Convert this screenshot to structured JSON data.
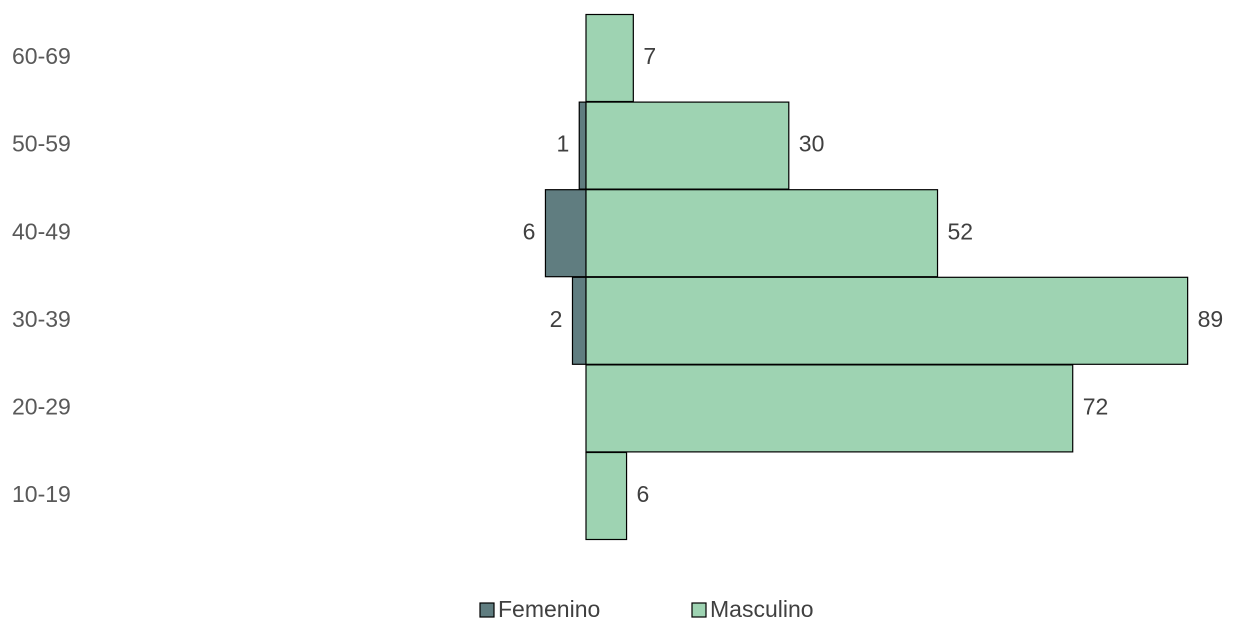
{
  "chart_data": {
    "type": "pyramid",
    "categories": [
      "60-69",
      "50-59",
      "40-49",
      "30-39",
      "20-29",
      "10-19"
    ],
    "series": [
      {
        "name": "Femenino",
        "color": "#607d80",
        "values": [
          null,
          1,
          6,
          2,
          null,
          null
        ]
      },
      {
        "name": "Masculino",
        "color": "#9ed3b2",
        "values": [
          7,
          30,
          52,
          89,
          72,
          6
        ]
      }
    ],
    "legend": "bottom"
  }
}
